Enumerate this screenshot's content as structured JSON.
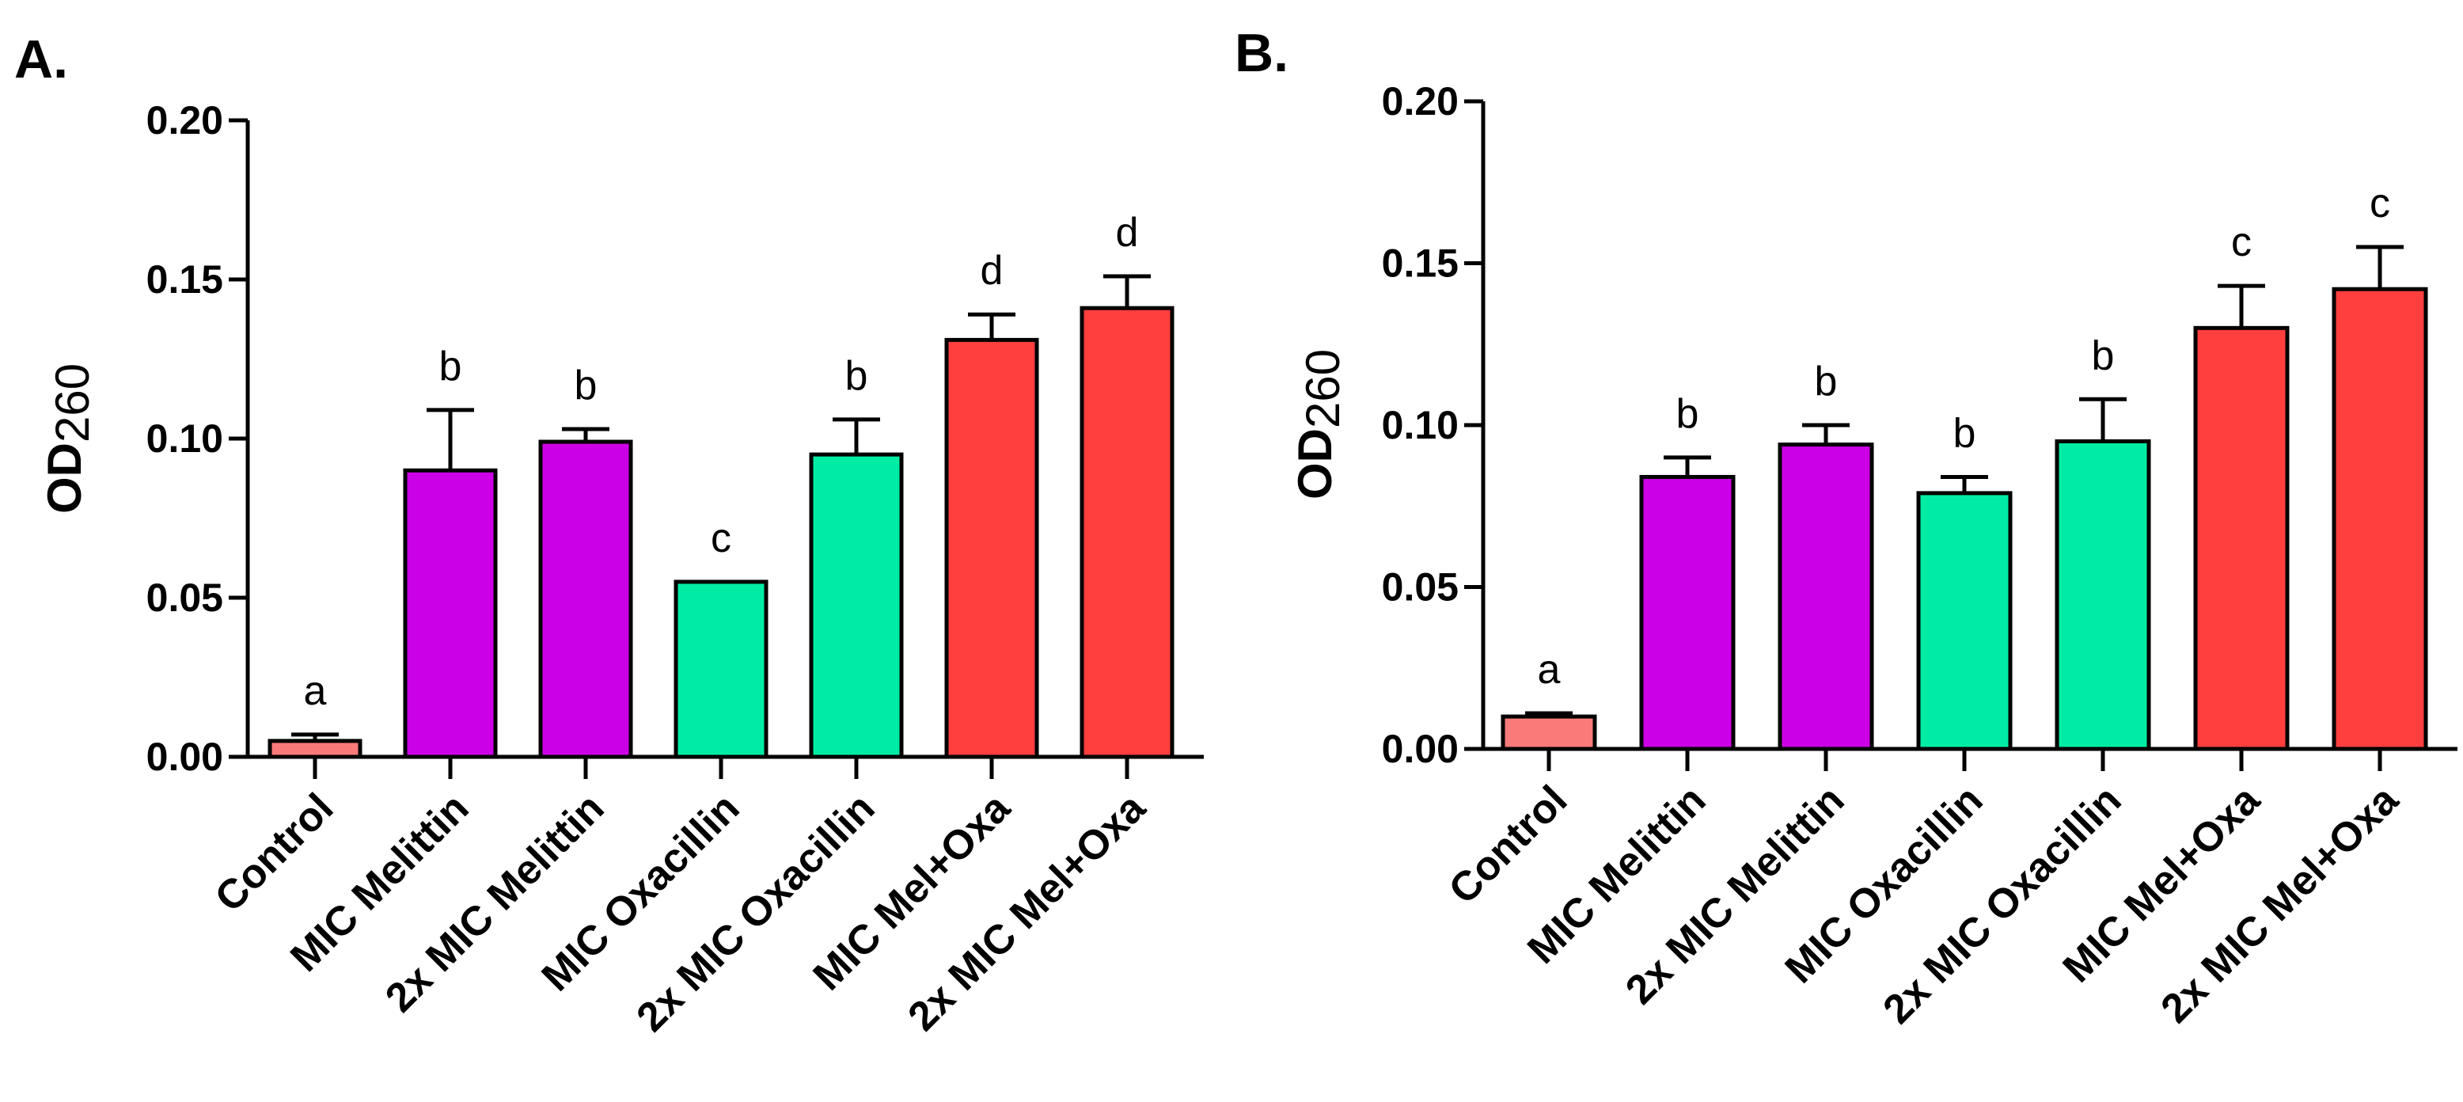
{
  "chart_data": [
    {
      "panel": "A.",
      "type": "bar",
      "ylabel": "OD",
      "ylabel_sub": "260",
      "ylim": [
        0,
        0.2
      ],
      "yticks": [
        "0.00",
        "0.05",
        "0.10",
        "0.15",
        "0.20"
      ],
      "categories": [
        "Control",
        "MIC Melittin",
        "2x MIC Melittin",
        "MIC Oxacillin",
        "2x MIC Oxacillin",
        "MIC Mel+Oxa",
        "2x MIC Mel+Oxa"
      ],
      "values": [
        0.005,
        0.09,
        0.099,
        0.055,
        0.095,
        0.131,
        0.141
      ],
      "errors": [
        0.002,
        0.019,
        0.004,
        0.0,
        0.011,
        0.008,
        0.01
      ],
      "letters": [
        "a",
        "b",
        "b",
        "c",
        "b",
        "d",
        "d"
      ],
      "colors": [
        "#fa7a7a",
        "#cc00e6",
        "#cc00e6",
        "#00eca4",
        "#00eca4",
        "#ff3e3e",
        "#ff3e3e"
      ]
    },
    {
      "panel": "B.",
      "type": "bar",
      "ylabel": "OD",
      "ylabel_sub": "260",
      "ylim": [
        0,
        0.2
      ],
      "yticks": [
        "0.00",
        "0.05",
        "0.10",
        "0.15",
        "0.20"
      ],
      "categories": [
        "Control",
        "MIC Melittin",
        "2x MIC Melittin",
        "MIC Oxacillin",
        "2x MIC Oxacillin",
        "MIC Mel+Oxa",
        "2x MIC Mel+Oxa"
      ],
      "values": [
        0.01,
        0.084,
        0.094,
        0.079,
        0.095,
        0.13,
        0.142
      ],
      "errors": [
        0.001,
        0.006,
        0.006,
        0.005,
        0.013,
        0.013,
        0.013
      ],
      "letters": [
        "a",
        "b",
        "b",
        "b",
        "b",
        "c",
        "c"
      ],
      "colors": [
        "#fa7a7a",
        "#cc00e6",
        "#cc00e6",
        "#00eca4",
        "#00eca4",
        "#ff3e3e",
        "#ff3e3e"
      ]
    }
  ]
}
